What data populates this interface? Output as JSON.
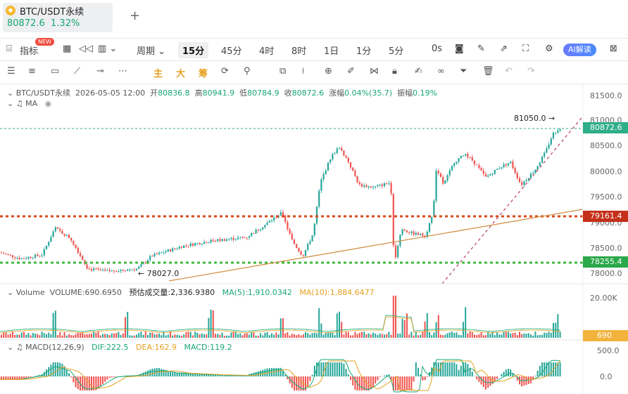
{
  "tab": {
    "title": "BTC/USDT永续",
    "price": "80872.6",
    "change": "1.32%",
    "add": "+"
  },
  "toolbar": {
    "indicators": "指标",
    "new_badge": "NEW",
    "period": "周期",
    "timeframes": [
      "15分",
      "45分",
      "4时",
      "8时",
      "1日",
      "1分",
      "5分"
    ],
    "countdown": "0s",
    "ai": "AI解读"
  },
  "drawtools": {
    "zhu": "主",
    "da": "大",
    "chou": "筹"
  },
  "info": {
    "symbol": "BTC/USDT永续",
    "datetime": "2026-05-05 12:00",
    "open_label": "开",
    "open": "80836.8",
    "high_label": "高",
    "high": "80941.9",
    "low_label": "低",
    "low": "80784.9",
    "close_label": "收",
    "close": "80872.6",
    "change_label": "涨幅",
    "change": "0.04%(35.7)",
    "amp_label": "振幅",
    "amp": "0.19%",
    "ma": "MA"
  },
  "price_axis": {
    "ticks": [
      "81500.0",
      "81000.0",
      "80500.0",
      "80000.0",
      "79500.0",
      "79000.0",
      "78500.0",
      "78000.0"
    ]
  },
  "price_tags": {
    "last": "80872.6",
    "red_line": "79161.4",
    "green_line": "78255.4",
    "volume": "690"
  },
  "annotations": {
    "high": "81050.0",
    "low": "78027.0"
  },
  "volume": {
    "label": "Volume",
    "volume": "VOLUME:690.6950",
    "est": "预估成交量:2,336.9380",
    "ma5": "MA(5):1,910.0342",
    "ma10": "MA(10):1,884.6477",
    "axis": "20.00K"
  },
  "macd": {
    "label": "MACD(12,26,9)",
    "dif": "DIF:222.5",
    "dea": "DEA:162.9",
    "macd": "MACD:119.2",
    "axis_top": "500.0",
    "axis_zero": "0.0"
  },
  "colors": {
    "up": "#26a69a",
    "down": "#ef5350",
    "red_line": "#d9481c",
    "green_line": "#3fb83f",
    "trend": "#d08a3a",
    "tag_red": "#c4301a",
    "tag_green": "#2aa84a",
    "tag_last": "#2fae8a",
    "tag_vol": "#f2b33d"
  }
}
